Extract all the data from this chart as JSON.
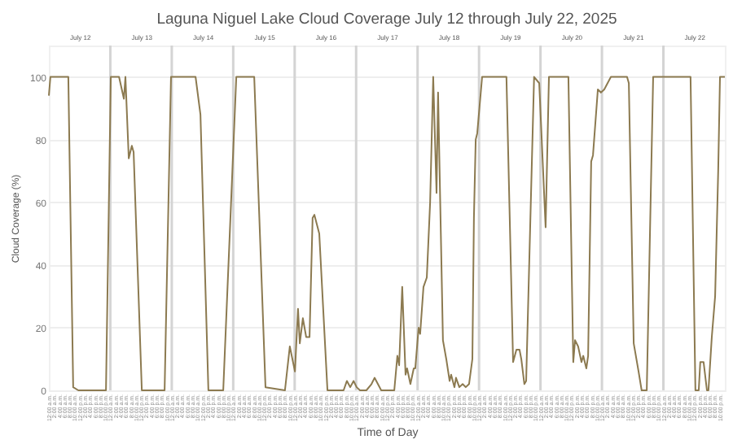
{
  "chart_data": {
    "type": "line",
    "title": "Laguna Niguel Lake Cloud Coverage July 12 through July 22, 2025",
    "xlabel": "Time of Day",
    "ylabel": "Cloud Coverage (%)",
    "x": [
      "2025-07-12T00:00",
      "2025-07-12T00:36",
      "2025-07-12T07:36",
      "2025-07-12T09:30",
      "2025-07-12T11:30",
      "2025-07-12T22:18",
      "2025-07-13T00:12",
      "2025-07-13T03:24",
      "2025-07-13T05:18",
      "2025-07-13T05:54",
      "2025-07-13T07:12",
      "2025-07-13T08:24",
      "2025-07-13T09:06",
      "2025-07-13T12:18",
      "2025-07-13T21:12",
      "2025-07-13T23:42",
      "2025-07-14T09:18",
      "2025-07-14T11:12",
      "2025-07-14T14:18",
      "2025-07-14T20:06",
      "2025-07-15T01:12",
      "2025-07-15T08:12",
      "2025-07-15T12:36",
      "2025-07-15T20:12",
      "2025-07-15T22:06",
      "2025-07-16T00:06",
      "2025-07-16T01:18",
      "2025-07-16T02:00",
      "2025-07-16T03:12",
      "2025-07-16T04:30",
      "2025-07-16T05:48",
      "2025-07-16T07:00",
      "2025-07-16T07:42",
      "2025-07-16T09:36",
      "2025-07-16T12:48",
      "2025-07-16T19:06",
      "2025-07-16T20:24",
      "2025-07-16T21:42",
      "2025-07-16T23:00",
      "2025-07-17T00:12",
      "2025-07-17T01:30",
      "2025-07-17T04:00",
      "2025-07-17T06:00",
      "2025-07-17T07:12",
      "2025-07-17T09:48",
      "2025-07-17T14:54",
      "2025-07-17T16:06",
      "2025-07-17T16:48",
      "2025-07-17T18:00",
      "2025-07-17T19:18",
      "2025-07-17T19:54",
      "2025-07-17T21:12",
      "2025-07-17T22:30",
      "2025-07-17T23:06",
      "2025-07-18T00:24",
      "2025-07-18T01:00",
      "2025-07-18T02:18",
      "2025-07-18T03:36",
      "2025-07-18T04:54",
      "2025-07-18T06:06",
      "2025-07-18T07:24",
      "2025-07-18T08:00",
      "2025-07-18T09:54",
      "2025-07-18T11:12",
      "2025-07-18T12:30",
      "2025-07-18T13:06",
      "2025-07-18T14:24",
      "2025-07-18T15:00",
      "2025-07-18T16:18",
      "2025-07-18T17:36",
      "2025-07-18T18:48",
      "2025-07-18T20:06",
      "2025-07-18T21:24",
      "2025-07-18T22:00",
      "2025-07-18T22:42",
      "2025-07-18T23:18",
      "2025-07-19T01:12",
      "2025-07-19T10:42",
      "2025-07-19T13:18",
      "2025-07-19T14:36",
      "2025-07-19T15:48",
      "2025-07-19T16:30",
      "2025-07-19T17:42",
      "2025-07-19T18:24",
      "2025-07-19T21:30",
      "2025-07-19T23:30",
      "2025-07-20T02:00",
      "2025-07-20T03:18",
      "2025-07-20T10:54",
      "2025-07-20T12:48",
      "2025-07-20T13:30",
      "2025-07-20T14:42",
      "2025-07-20T16:00",
      "2025-07-20T16:42",
      "2025-07-20T17:54",
      "2025-07-20T18:36",
      "2025-07-20T19:48",
      "2025-07-20T20:30",
      "2025-07-20T22:24",
      "2025-07-20T23:36",
      "2025-07-21T00:54",
      "2025-07-21T03:30",
      "2025-07-21T09:48",
      "2025-07-21T10:30",
      "2025-07-21T12:24",
      "2025-07-21T14:18",
      "2025-07-21T15:30",
      "2025-07-21T17:30",
      "2025-07-21T20:00",
      "2025-07-22T10:36",
      "2025-07-22T12:30",
      "2025-07-22T13:48",
      "2025-07-22T14:24",
      "2025-07-22T15:42",
      "2025-07-22T17:00",
      "2025-07-22T17:36",
      "2025-07-22T18:54",
      "2025-07-22T20:12",
      "2025-07-22T21:24",
      "2025-07-22T22:06",
      "2025-07-23T00:00"
    ],
    "series": [
      {
        "color": "#8c7a50",
        "values": [
          94,
          100,
          100,
          1,
          0,
          0,
          100,
          100,
          93,
          100,
          74,
          78,
          76,
          0,
          0,
          100,
          100,
          88,
          0,
          0,
          100,
          100,
          1,
          0,
          14,
          6,
          26,
          15,
          23,
          17,
          17,
          55,
          56,
          50,
          0,
          0,
          3,
          1,
          3,
          1,
          0,
          0,
          2,
          4,
          0,
          0,
          11,
          8,
          33,
          5,
          7,
          2,
          7,
          7,
          20,
          18,
          33,
          36,
          60,
          100,
          63,
          95,
          16,
          10,
          3,
          5,
          1,
          4,
          1,
          2,
          1,
          2,
          10,
          55,
          80,
          82,
          100,
          100,
          9,
          13,
          13,
          10,
          2,
          3,
          100,
          98,
          52,
          100,
          100,
          9,
          16,
          14,
          9,
          11,
          7,
          11,
          73,
          75,
          96,
          95,
          96,
          100,
          100,
          98,
          15,
          6,
          0,
          0,
          100,
          100,
          0,
          0,
          9,
          9,
          0,
          0,
          17,
          30,
          70,
          100,
          100
        ]
      }
    ],
    "xlim": [
      "2025-07-12T00:00",
      "2025-07-23T00:00"
    ],
    "ylim": [
      0,
      110
    ],
    "yticks": [
      0,
      20,
      40,
      60,
      80,
      100
    ],
    "xticks": [
      {
        "value": "2025-07-12T00:00",
        "label": "12:00 a.m."
      },
      {
        "value": "2025-07-12T02:00",
        "label": "2:00 a.m."
      },
      {
        "value": "2025-07-12T04:00",
        "label": "4:00 a.m."
      },
      {
        "value": "2025-07-12T06:00",
        "label": "6:00 a.m."
      },
      {
        "value": "2025-07-12T08:00",
        "label": "8:00 a.m."
      },
      {
        "value": "2025-07-12T10:00",
        "label": "10:00 a.m."
      },
      {
        "value": "2025-07-12T12:00",
        "label": "12:00 p.m."
      },
      {
        "value": "2025-07-12T14:00",
        "label": "2:00 p.m."
      },
      {
        "value": "2025-07-12T16:00",
        "label": "4:00 p.m."
      },
      {
        "value": "2025-07-12T18:00",
        "label": "6:00 p.m."
      },
      {
        "value": "2025-07-12T20:00",
        "label": "8:00 p.m."
      },
      {
        "value": "2025-07-12T22:00",
        "label": "10:00 p.m."
      },
      {
        "value": "2025-07-13T00:00",
        "label": "12:00 a.m."
      },
      {
        "value": "2025-07-13T02:00",
        "label": "2:00 a.m."
      },
      {
        "value": "2025-07-13T04:00",
        "label": "4:00 a.m."
      },
      {
        "value": "2025-07-13T06:00",
        "label": "6:00 a.m."
      },
      {
        "value": "2025-07-13T08:00",
        "label": "8:00 a.m."
      },
      {
        "value": "2025-07-13T10:00",
        "label": "10:00 a.m."
      },
      {
        "value": "2025-07-13T12:00",
        "label": "12:00 p.m."
      },
      {
        "value": "2025-07-13T14:00",
        "label": "2:00 p.m."
      },
      {
        "value": "2025-07-13T16:00",
        "label": "4:00 p.m."
      },
      {
        "value": "2025-07-13T18:00",
        "label": "6:00 p.m."
      },
      {
        "value": "2025-07-13T20:00",
        "label": "8:00 p.m."
      },
      {
        "value": "2025-07-13T22:00",
        "label": "10:00 p.m."
      },
      {
        "value": "2025-07-14T00:00",
        "label": "12:00 a.m."
      },
      {
        "value": "2025-07-14T02:00",
        "label": "2:00 a.m."
      },
      {
        "value": "2025-07-14T04:00",
        "label": "4:00 a.m."
      },
      {
        "value": "2025-07-14T06:00",
        "label": "6:00 a.m."
      },
      {
        "value": "2025-07-14T08:00",
        "label": "8:00 a.m."
      },
      {
        "value": "2025-07-14T10:00",
        "label": "10:00 a.m."
      },
      {
        "value": "2025-07-14T12:00",
        "label": "12:00 p.m."
      },
      {
        "value": "2025-07-14T14:00",
        "label": "2:00 p.m."
      },
      {
        "value": "2025-07-14T16:00",
        "label": "4:00 p.m."
      },
      {
        "value": "2025-07-14T18:00",
        "label": "6:00 p.m."
      },
      {
        "value": "2025-07-14T20:00",
        "label": "8:00 p.m."
      },
      {
        "value": "2025-07-14T22:00",
        "label": "10:00 p.m."
      },
      {
        "value": "2025-07-15T00:00",
        "label": "12:00 a.m."
      },
      {
        "value": "2025-07-15T02:00",
        "label": "2:00 a.m."
      },
      {
        "value": "2025-07-15T04:00",
        "label": "4:00 a.m."
      },
      {
        "value": "2025-07-15T06:00",
        "label": "6:00 a.m."
      },
      {
        "value": "2025-07-15T08:00",
        "label": "8:00 a.m."
      },
      {
        "value": "2025-07-15T10:00",
        "label": "10:00 a.m."
      },
      {
        "value": "2025-07-15T12:00",
        "label": "12:00 p.m."
      },
      {
        "value": "2025-07-15T14:00",
        "label": "2:00 p.m."
      },
      {
        "value": "2025-07-15T16:00",
        "label": "4:00 p.m."
      },
      {
        "value": "2025-07-15T18:00",
        "label": "6:00 p.m."
      },
      {
        "value": "2025-07-15T20:00",
        "label": "8:00 p.m."
      },
      {
        "value": "2025-07-15T22:00",
        "label": "10:00 p.m."
      },
      {
        "value": "2025-07-16T00:00",
        "label": "12:00 a.m."
      },
      {
        "value": "2025-07-16T02:00",
        "label": "2:00 a.m."
      },
      {
        "value": "2025-07-16T04:00",
        "label": "4:00 a.m."
      },
      {
        "value": "2025-07-16T06:00",
        "label": "6:00 a.m."
      },
      {
        "value": "2025-07-16T08:00",
        "label": "8:00 a.m."
      },
      {
        "value": "2025-07-16T10:00",
        "label": "10:00 a.m."
      },
      {
        "value": "2025-07-16T12:00",
        "label": "12:00 p.m."
      },
      {
        "value": "2025-07-16T14:00",
        "label": "2:00 p.m."
      },
      {
        "value": "2025-07-16T16:00",
        "label": "4:00 p.m."
      },
      {
        "value": "2025-07-16T18:00",
        "label": "6:00 p.m."
      },
      {
        "value": "2025-07-16T20:00",
        "label": "8:00 p.m."
      },
      {
        "value": "2025-07-16T22:00",
        "label": "10:00 p.m."
      },
      {
        "value": "2025-07-17T00:00",
        "label": "12:00 a.m."
      },
      {
        "value": "2025-07-17T02:00",
        "label": "2:00 a.m."
      },
      {
        "value": "2025-07-17T04:00",
        "label": "4:00 a.m."
      },
      {
        "value": "2025-07-17T06:00",
        "label": "6:00 a.m."
      },
      {
        "value": "2025-07-17T08:00",
        "label": "8:00 a.m."
      },
      {
        "value": "2025-07-17T10:00",
        "label": "10:00 a.m."
      },
      {
        "value": "2025-07-17T12:00",
        "label": "12:00 p.m."
      },
      {
        "value": "2025-07-17T14:00",
        "label": "2:00 p.m."
      },
      {
        "value": "2025-07-17T16:00",
        "label": "4:00 p.m."
      },
      {
        "value": "2025-07-17T18:00",
        "label": "6:00 p.m."
      },
      {
        "value": "2025-07-17T20:00",
        "label": "8:00 p.m."
      },
      {
        "value": "2025-07-17T22:00",
        "label": "10:00 p.m."
      },
      {
        "value": "2025-07-18T00:00",
        "label": "12:00 a.m."
      },
      {
        "value": "2025-07-18T02:00",
        "label": "2:00 a.m."
      },
      {
        "value": "2025-07-18T04:00",
        "label": "4:00 a.m."
      },
      {
        "value": "2025-07-18T06:00",
        "label": "6:00 a.m."
      },
      {
        "value": "2025-07-18T08:00",
        "label": "8:00 a.m."
      },
      {
        "value": "2025-07-18T10:00",
        "label": "10:00 a.m."
      },
      {
        "value": "2025-07-18T12:00",
        "label": "12:00 p.m."
      },
      {
        "value": "2025-07-18T14:00",
        "label": "2:00 p.m."
      },
      {
        "value": "2025-07-18T16:00",
        "label": "4:00 p.m."
      },
      {
        "value": "2025-07-18T18:00",
        "label": "6:00 p.m."
      },
      {
        "value": "2025-07-18T20:00",
        "label": "8:00 p.m."
      },
      {
        "value": "2025-07-18T22:00",
        "label": "10:00 p.m."
      },
      {
        "value": "2025-07-19T00:00",
        "label": "12:00 a.m."
      },
      {
        "value": "2025-07-19T02:00",
        "label": "2:00 a.m."
      },
      {
        "value": "2025-07-19T04:00",
        "label": "4:00 a.m."
      },
      {
        "value": "2025-07-19T06:00",
        "label": "6:00 a.m."
      },
      {
        "value": "2025-07-19T08:00",
        "label": "8:00 a.m."
      },
      {
        "value": "2025-07-19T10:00",
        "label": "10:00 a.m."
      },
      {
        "value": "2025-07-19T12:00",
        "label": "12:00 p.m."
      },
      {
        "value": "2025-07-19T14:00",
        "label": "2:00 p.m."
      },
      {
        "value": "2025-07-19T16:00",
        "label": "4:00 p.m."
      },
      {
        "value": "2025-07-19T18:00",
        "label": "6:00 p.m."
      },
      {
        "value": "2025-07-19T20:00",
        "label": "8:00 p.m."
      },
      {
        "value": "2025-07-19T22:00",
        "label": "10:00 p.m."
      },
      {
        "value": "2025-07-20T00:00",
        "label": "12:00 a.m."
      },
      {
        "value": "2025-07-20T02:00",
        "label": "2:00 a.m."
      },
      {
        "value": "2025-07-20T04:00",
        "label": "4:00 a.m."
      },
      {
        "value": "2025-07-20T06:00",
        "label": "6:00 a.m."
      },
      {
        "value": "2025-07-20T08:00",
        "label": "8:00 a.m."
      },
      {
        "value": "2025-07-20T10:00",
        "label": "10:00 a.m."
      },
      {
        "value": "2025-07-20T12:00",
        "label": "12:00 p.m."
      },
      {
        "value": "2025-07-20T14:00",
        "label": "2:00 p.m."
      },
      {
        "value": "2025-07-20T16:00",
        "label": "4:00 p.m."
      },
      {
        "value": "2025-07-20T18:00",
        "label": "6:00 p.m."
      },
      {
        "value": "2025-07-20T20:00",
        "label": "8:00 p.m."
      },
      {
        "value": "2025-07-20T22:00",
        "label": "10:00 p.m."
      },
      {
        "value": "2025-07-21T00:00",
        "label": "12:00 a.m."
      },
      {
        "value": "2025-07-21T02:00",
        "label": "2:00 a.m."
      },
      {
        "value": "2025-07-21T04:00",
        "label": "4:00 a.m."
      },
      {
        "value": "2025-07-21T06:00",
        "label": "6:00 a.m."
      },
      {
        "value": "2025-07-21T08:00",
        "label": "8:00 a.m."
      },
      {
        "value": "2025-07-21T10:00",
        "label": "10:00 a.m."
      },
      {
        "value": "2025-07-21T12:00",
        "label": "12:00 p.m."
      },
      {
        "value": "2025-07-21T14:00",
        "label": "2:00 p.m."
      },
      {
        "value": "2025-07-21T16:00",
        "label": "4:00 p.m."
      },
      {
        "value": "2025-07-21T18:00",
        "label": "6:00 p.m."
      },
      {
        "value": "2025-07-21T20:00",
        "label": "8:00 p.m."
      },
      {
        "value": "2025-07-21T22:00",
        "label": "10:00 p.m."
      },
      {
        "value": "2025-07-22T00:00",
        "label": "12:00 a.m."
      },
      {
        "value": "2025-07-22T02:00",
        "label": "2:00 a.m."
      },
      {
        "value": "2025-07-22T04:00",
        "label": "4:00 a.m."
      },
      {
        "value": "2025-07-22T06:00",
        "label": "6:00 a.m."
      },
      {
        "value": "2025-07-22T08:00",
        "label": "8:00 a.m."
      },
      {
        "value": "2025-07-22T10:00",
        "label": "10:00 a.m."
      },
      {
        "value": "2025-07-22T12:00",
        "label": "12:00 p.m."
      },
      {
        "value": "2025-07-22T14:00",
        "label": "2:00 p.m."
      },
      {
        "value": "2025-07-22T16:00",
        "label": "4:00 p.m."
      },
      {
        "value": "2025-07-22T18:00",
        "label": "6:00 p.m."
      },
      {
        "value": "2025-07-22T20:00",
        "label": "8:00 p.m."
      },
      {
        "value": "2025-07-22T22:00",
        "label": "10:00 p.m."
      }
    ],
    "x2lim": [
      "2025-07-12T00:00",
      "2025-07-23T00:00"
    ],
    "x2ticks": [
      {
        "value": "2025-07-12T12:00",
        "label": "July 12"
      },
      {
        "value": "2025-07-13T12:00",
        "label": "July 13"
      },
      {
        "value": "2025-07-14T12:00",
        "label": "July 14"
      },
      {
        "value": "2025-07-15T12:00",
        "label": "July 15"
      },
      {
        "value": "2025-07-16T12:00",
        "label": "July 16"
      },
      {
        "value": "2025-07-17T12:00",
        "label": "July 17"
      },
      {
        "value": "2025-07-18T12:00",
        "label": "July 18"
      },
      {
        "value": "2025-07-19T12:00",
        "label": "July 19"
      },
      {
        "value": "2025-07-20T12:00",
        "label": "July 20"
      },
      {
        "value": "2025-07-21T12:00",
        "label": "July 21"
      },
      {
        "value": "2025-07-22T12:00",
        "label": "July 22"
      }
    ],
    "ref_lines": [
      {
        "axis": "x",
        "value": "2025-07-13T00:00",
        "color": "#d4d4d4"
      },
      {
        "axis": "x",
        "value": "2025-07-14T00:00",
        "color": "#d4d4d4"
      },
      {
        "axis": "x",
        "value": "2025-07-15T00:00",
        "color": "#d4d4d4"
      },
      {
        "axis": "x",
        "value": "2025-07-16T00:00",
        "color": "#d4d4d4"
      },
      {
        "axis": "x",
        "value": "2025-07-17T00:00",
        "color": "#d4d4d4"
      },
      {
        "axis": "x",
        "value": "2025-07-18T00:00",
        "color": "#d4d4d4"
      },
      {
        "axis": "x",
        "value": "2025-07-19T00:00",
        "color": "#d4d4d4"
      },
      {
        "axis": "x",
        "value": "2025-07-20T00:00",
        "color": "#d4d4d4"
      },
      {
        "axis": "x",
        "value": "2025-07-21T00:00",
        "color": "#d4d4d4"
      },
      {
        "axis": "x",
        "value": "2025-07-22T00:00",
        "color": "#d4d4d4"
      }
    ],
    "grid": "y",
    "legend": false,
    "marker": "none",
    "line_style": "solid"
  }
}
